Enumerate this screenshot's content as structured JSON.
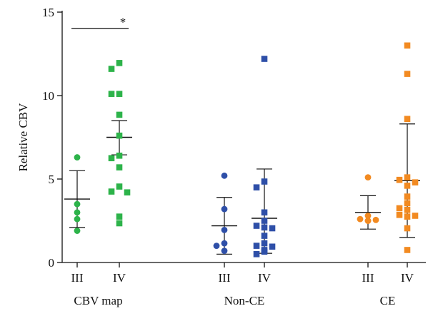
{
  "chart_data": {
    "type": "scatter",
    "ylabel": "Relative CBV",
    "ylim": [
      0,
      15
    ],
    "yticks": [
      "0",
      "5",
      "10",
      "15"
    ],
    "groups": [
      {
        "name": "CBV map",
        "color": "#2db34a",
        "series": [
          {
            "grade": "III",
            "marker": "circle",
            "values": [
              6.3,
              3.5,
              3.0,
              2.6,
              1.9
            ],
            "mean": 3.8,
            "sd_low": 2.1,
            "sd_high": 5.5
          },
          {
            "grade": "IV",
            "marker": "square",
            "values": [
              11.95,
              11.6,
              10.1,
              10.1,
              8.85,
              7.6,
              6.4,
              6.25,
              5.7,
              4.55,
              4.25,
              4.2,
              2.75,
              2.35
            ],
            "mean": 7.5,
            "sd_low": 6.45,
            "sd_high": 8.5
          }
        ]
      },
      {
        "name": "Non-CE",
        "color": "#2e4fa8",
        "series": [
          {
            "grade": "III",
            "marker": "circle",
            "values": [
              5.2,
              3.2,
              1.95,
              1.15,
              1.0,
              0.7
            ],
            "mean": 2.2,
            "sd_low": 0.5,
            "sd_high": 3.9
          },
          {
            "grade": "IV",
            "marker": "square",
            "values": [
              12.2,
              4.85,
              4.5,
              3.0,
              2.5,
              2.2,
              2.1,
              2.05,
              1.6,
              1.15,
              1.0,
              0.95,
              0.75,
              0.65,
              0.5
            ],
            "mean": 2.65,
            "sd_low": 0.55,
            "sd_high": 5.6
          }
        ]
      },
      {
        "name": "CE",
        "color": "#f28a21",
        "series": [
          {
            "grade": "III",
            "marker": "circle",
            "values": [
              5.1,
              2.8,
              2.6,
              2.55,
              2.5,
              2.5
            ],
            "mean": 3.0,
            "sd_low": 2.0,
            "sd_high": 4.0
          },
          {
            "grade": "IV",
            "marker": "square",
            "values": [
              13.0,
              11.3,
              8.6,
              5.1,
              4.95,
              4.8,
              4.6,
              3.95,
              3.55,
              3.25,
              3.15,
              2.85,
              2.8,
              2.75,
              2.05,
              0.75
            ],
            "mean": 4.9,
            "sd_low": 1.5,
            "sd_high": 8.3
          }
        ]
      }
    ],
    "annotations": [
      {
        "text": "*",
        "between": [
          "CBV map III",
          "CBV map IV"
        ],
        "y": 14.2
      }
    ]
  }
}
